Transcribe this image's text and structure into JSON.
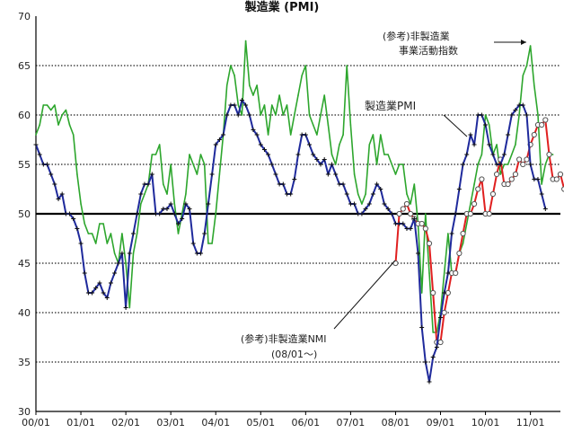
{
  "chart_data": {
    "type": "line",
    "title": "製造業 (PMI)",
    "ylim": [
      30,
      70
    ],
    "yticks": [
      "30",
      "35",
      "40",
      "45",
      "50",
      "55",
      "60",
      "65",
      "70"
    ],
    "xticks": [
      "00/01",
      "01/01",
      "02/01",
      "03/01",
      "04/01",
      "05/01",
      "06/01",
      "07/01",
      "08/01",
      "09/01",
      "10/01",
      "11/01"
    ],
    "x_start": "2000-01",
    "x_end": "2011-09",
    "grid": "horizontal dotted",
    "reference_line": 50,
    "annotations": [
      {
        "text": "(参考)非製造業",
        "target": "nonmfg_business"
      },
      {
        "text": "事業活動指数",
        "target": "nonmfg_business"
      },
      {
        "text": "製造業PMI",
        "target": "mfg_pmi"
      },
      {
        "text": "(参考)非製造業NMI",
        "target": "nonmfg_nmi"
      },
      {
        "text": "(08/01〜)",
        "target": "nonmfg_nmi"
      }
    ],
    "series": [
      {
        "key": "mfg_pmi",
        "name": "製造業PMI",
        "color": "#1f2a9c",
        "marker": "plus",
        "start": "2000-01",
        "values": [
          57,
          56,
          55,
          55,
          54,
          53,
          51.5,
          52,
          50,
          50,
          49.5,
          48.5,
          47,
          44,
          42,
          42,
          42.5,
          43,
          42,
          41.5,
          43,
          44,
          45,
          46,
          40.5,
          46,
          48,
          50,
          52,
          53,
          53,
          54,
          50,
          50,
          50.5,
          50.5,
          51,
          50,
          49,
          49.5,
          51,
          50.5,
          47,
          46,
          46,
          48,
          51,
          54,
          57,
          57.5,
          58,
          60,
          61,
          61,
          60,
          61.5,
          61,
          60,
          58.5,
          58,
          57,
          56.5,
          56,
          55,
          54,
          53,
          53,
          52,
          52,
          53.5,
          56,
          58,
          58,
          57,
          56,
          55.5,
          55,
          55.5,
          54,
          55,
          54,
          53,
          53,
          52,
          51,
          51,
          50,
          50,
          50.5,
          51,
          52,
          53,
          52.5,
          51,
          50.5,
          50,
          49,
          49,
          49,
          48.5,
          48.5,
          49.5,
          46,
          38.5,
          35,
          33,
          35.5,
          36.5,
          39.5,
          42,
          44,
          48,
          50,
          52.5,
          55,
          56,
          58,
          57,
          60,
          60,
          59,
          57,
          56,
          55,
          55,
          56,
          58,
          60,
          60.5,
          61,
          61,
          60,
          55,
          53.5,
          53.5,
          52,
          50.5
        ]
      },
      {
        "key": "nonmfg_business",
        "name": "(参考)非製造業 事業活動指数",
        "color": "#2da62d",
        "marker": "none",
        "start": "2000-01",
        "values": [
          58,
          59,
          61,
          61,
          60.5,
          61,
          59,
          60,
          60.5,
          59,
          58,
          54,
          51,
          49,
          48,
          48,
          47,
          49,
          49,
          47,
          48,
          46,
          45,
          48,
          45,
          40.5,
          46,
          48,
          51,
          52,
          53,
          56,
          56,
          57,
          53,
          52,
          55,
          51,
          48,
          50,
          52,
          56,
          55,
          54,
          56,
          55,
          47,
          47,
          50,
          54,
          58,
          63,
          65,
          64,
          61,
          60,
          67.5,
          63,
          62,
          63,
          60,
          61,
          58,
          61,
          60,
          62,
          60,
          61,
          58,
          60,
          62,
          64,
          65,
          60,
          59,
          58,
          60,
          62,
          59,
          56,
          55,
          57,
          58,
          65,
          59,
          54,
          52,
          51,
          52,
          57,
          58,
          55,
          58,
          56,
          56,
          55,
          54,
          55,
          55,
          52,
          51,
          53,
          49,
          42,
          50,
          44,
          38,
          38,
          40,
          44,
          48,
          44,
          44,
          46,
          47,
          49,
          51,
          53,
          55,
          56,
          60,
          59,
          56,
          57,
          54,
          55,
          55,
          56,
          57,
          60,
          64,
          65,
          67,
          63,
          60,
          53,
          55,
          56,
          56
        ]
      },
      {
        "key": "nonmfg_nmi",
        "name": "(参考)非製造業NMI",
        "color": "#e02020",
        "marker": "circle",
        "start": "2008-01",
        "values": [
          45,
          50,
          50.5,
          51,
          50,
          49.5,
          49,
          49,
          48.5,
          47,
          42,
          37,
          37,
          40,
          42,
          44,
          44,
          46,
          48,
          50,
          50,
          51,
          52.5,
          53.5,
          50,
          50,
          52,
          54,
          55.5,
          53,
          53,
          53.5,
          54,
          55.5,
          55,
          55.5,
          57,
          58,
          59,
          59,
          59.5,
          56,
          53.5,
          53.5,
          54,
          52.5
        ]
      }
    ]
  }
}
